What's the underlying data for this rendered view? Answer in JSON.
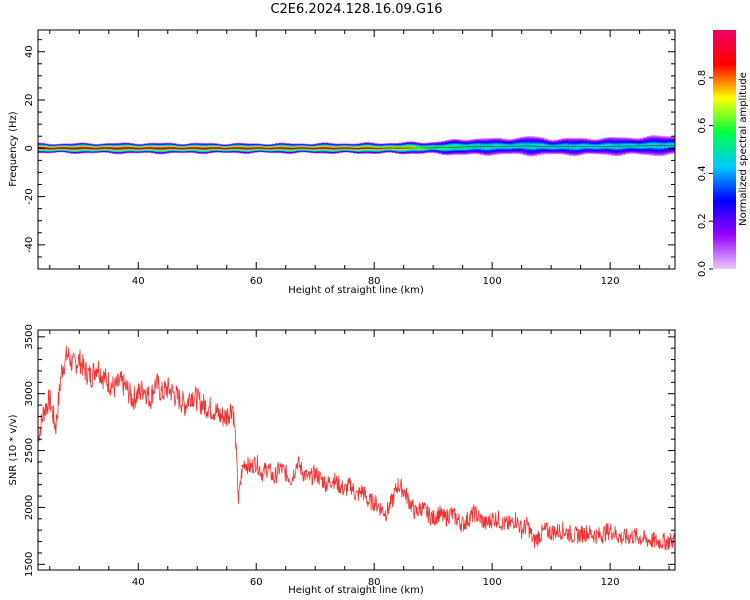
{
  "title": "C2E6.2024.128.16.09.G16",
  "chart_data": [
    {
      "type": "heatmap",
      "xlabel": "Height of straight line (km)",
      "ylabel": "Frequency (Hz)",
      "xlim": [
        23,
        131
      ],
      "ylim": [
        -50,
        49
      ],
      "xticks": [
        40,
        60,
        80,
        100,
        120
      ],
      "yticks": [
        -40,
        -20,
        0,
        20,
        40
      ],
      "band_center_hz": [
        {
          "x": 23,
          "y": 0.0
        },
        {
          "x": 40,
          "y": 0.0
        },
        {
          "x": 60,
          "y": 0.0
        },
        {
          "x": 80,
          "y": 0.0
        },
        {
          "x": 90,
          "y": 0.2
        },
        {
          "x": 96,
          "y": 0.6
        },
        {
          "x": 100,
          "y": 0.7
        },
        {
          "x": 106,
          "y": 1.0
        },
        {
          "x": 110,
          "y": 0.6
        },
        {
          "x": 120,
          "y": 0.8
        },
        {
          "x": 131,
          "y": 1.2
        }
      ],
      "band_halfwidth_hz": [
        {
          "x": 23,
          "y": 2.0
        },
        {
          "x": 40,
          "y": 2.2
        },
        {
          "x": 60,
          "y": 2.0
        },
        {
          "x": 80,
          "y": 2.2
        },
        {
          "x": 90,
          "y": 2.5
        },
        {
          "x": 96,
          "y": 3.5
        },
        {
          "x": 100,
          "y": 3.2
        },
        {
          "x": 106,
          "y": 3.8
        },
        {
          "x": 110,
          "y": 3.3
        },
        {
          "x": 120,
          "y": 3.5
        },
        {
          "x": 131,
          "y": 4.0
        }
      ],
      "core_amplitude": [
        {
          "x": 23,
          "y": 0.95
        },
        {
          "x": 55,
          "y": 0.92
        },
        {
          "x": 75,
          "y": 0.9
        },
        {
          "x": 85,
          "y": 0.8
        },
        {
          "x": 90,
          "y": 0.62
        },
        {
          "x": 100,
          "y": 0.52
        },
        {
          "x": 110,
          "y": 0.5
        },
        {
          "x": 131,
          "y": 0.48
        }
      ],
      "colorbar": {
        "label": "Normalized spectral amplitude",
        "range": [
          0,
          1
        ],
        "ticks": [
          "0.0",
          "0.2",
          "0.4",
          "0.6",
          "0.8"
        ],
        "colors": [
          "#e8c8ff",
          "#9900ff",
          "#0000ff",
          "#00ccff",
          "#00ff44",
          "#ffff00",
          "#ff0000",
          "#ee0066"
        ]
      },
      "grid": false
    },
    {
      "type": "line",
      "xlabel": "Height of straight line (km)",
      "ylabel": "SNR (10 * v/v)",
      "xlim": [
        23,
        131
      ],
      "ylim": [
        1450,
        3560
      ],
      "xticks": [
        40,
        60,
        80,
        100,
        120
      ],
      "yticks": [
        1500,
        2000,
        2500,
        3000,
        3500
      ],
      "color": "#ee3333",
      "grid": false,
      "series": [
        {
          "x": [
            23,
            24,
            25,
            26,
            27,
            28,
            29,
            30,
            31,
            32,
            33,
            34,
            35,
            36,
            37,
            38,
            39,
            40,
            41,
            42,
            43,
            44,
            45,
            46,
            47,
            48,
            49,
            50,
            51,
            52,
            53,
            54,
            55,
            56,
            56.5,
            57,
            57.5,
            58,
            59,
            60,
            61,
            62,
            63,
            64,
            65,
            66,
            67,
            68,
            69,
            70,
            71,
            72,
            73,
            74,
            75,
            76,
            77,
            78,
            79,
            80,
            81,
            82,
            83,
            84,
            85,
            86,
            87,
            88,
            89,
            90,
            91,
            92,
            93,
            94,
            95,
            96,
            97,
            98,
            99,
            100,
            101,
            102,
            103,
            104,
            105,
            106,
            107,
            108,
            109,
            110,
            112,
            114,
            116,
            118,
            120,
            122,
            124,
            126,
            128,
            130,
            131
          ],
          "values": [
            2600,
            2850,
            2950,
            2700,
            3200,
            3350,
            3250,
            3300,
            3200,
            3150,
            3250,
            3150,
            3100,
            3050,
            3100,
            3050,
            2950,
            3000,
            3050,
            2950,
            3100,
            3000,
            3050,
            3000,
            2950,
            2900,
            3000,
            2950,
            2900,
            2880,
            2850,
            2800,
            2800,
            2900,
            2600,
            2050,
            2300,
            2400,
            2350,
            2400,
            2300,
            2350,
            2250,
            2350,
            2300,
            2250,
            2400,
            2300,
            2250,
            2300,
            2250,
            2200,
            2250,
            2200,
            2150,
            2200,
            2100,
            2150,
            2050,
            2050,
            2000,
            1950,
            2050,
            2200,
            2150,
            2050,
            1950,
            2000,
            1950,
            1900,
            1950,
            1900,
            1950,
            1900,
            1850,
            1900,
            1950,
            1900,
            1850,
            1900,
            1900,
            1850,
            1850,
            1900,
            1800,
            1850,
            1700,
            1750,
            1800,
            1780,
            1800,
            1750,
            1780,
            1750,
            1800,
            1730,
            1750,
            1720,
            1700,
            1700,
            1720
          ]
        }
      ]
    }
  ]
}
